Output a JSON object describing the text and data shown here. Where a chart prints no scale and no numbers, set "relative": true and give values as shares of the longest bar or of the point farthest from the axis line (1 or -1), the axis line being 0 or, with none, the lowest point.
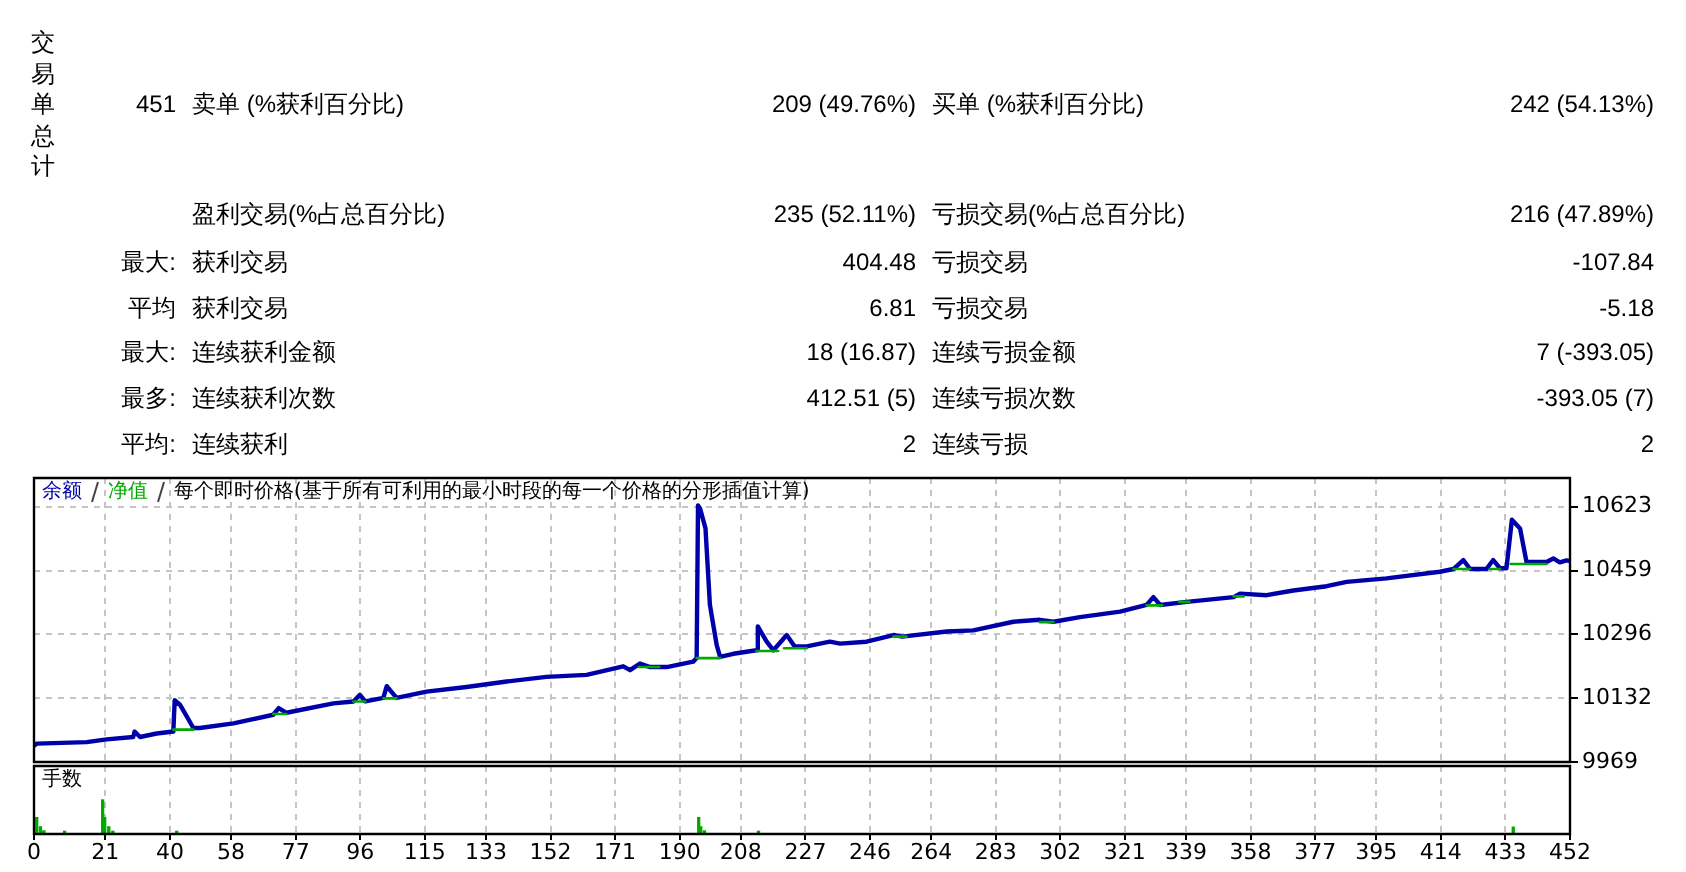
{
  "chart_data": [
    {
      "type": "other",
      "title": "交易单总计",
      "annotations": [
        "451",
        "卖单 (%获利百分比)",
        "209 (49.76%)",
        "买单 (%获利百分比)",
        "242 (54.13%)",
        "盈利交易(%占总百分比)",
        "235 (52.11%)",
        "亏损交易(%占总百分比)",
        "216 (47.89%)",
        "最大:",
        "获利交易",
        "404.48",
        "亏损交易",
        "-107.84",
        "平均",
        "获利交易",
        "6.81",
        "亏损交易",
        "-5.18",
        "最大:",
        "连续获利金额",
        "18 (16.87)",
        "连续亏损金额",
        "7 (-393.05)",
        "最多:",
        "连续获利次数",
        "412.51 (5)",
        "连续亏损次数",
        "-393.05 (7)",
        "平均:",
        "连续获利",
        "2",
        "连续亏损",
        "2"
      ]
    },
    {
      "type": "line",
      "legend": "top left",
      "annotations": [
        "每个即时价格(基于所有可利用的最小时段的每一个价格的分形插值计算)"
      ],
      "xlim": [
        0,
        452
      ],
      "xticks": [
        0,
        21,
        40,
        58,
        77,
        96,
        115,
        133,
        152,
        171,
        190,
        208,
        227,
        246,
        264,
        283,
        302,
        321,
        339,
        358,
        377,
        395,
        414,
        433,
        452
      ],
      "ylim": [
        9969,
        10696
      ],
      "yticks": [
        9969,
        10132,
        10296,
        10459,
        10623
      ],
      "grid": true,
      "tick_labels": "y",
      "series": [
        {
          "name": "余额",
          "color": "#0000aa",
          "x": [
            0,
            0.8,
            15.5,
            21.4,
            29.2,
            29.6,
            31.2,
            36.1,
            41.0,
            41.4,
            43.0,
            46.9,
            48.8,
            58.7,
            70.4,
            72.0,
            74.3,
            88.1,
            94.0,
            95.9,
            97.5,
            102.8,
            103.8,
            106.7,
            115.5,
            127.3,
            139.1,
            150.8,
            162.6,
            173.4,
            175.4,
            178.3,
            181.3,
            186.2,
            194.0,
            195.0,
            195.4,
            196.0,
            197.6,
            198.9,
            200.9,
            201.9,
            205.8,
            212.6,
            213.0,
            215.6,
            217.6,
            221.5,
            223.8,
            227.4,
            234.2,
            237.2,
            245.0,
            252.9,
            255.5,
            268.6,
            276.4,
            288.2,
            296.0,
            300.0,
            307.8,
            319.6,
            327.4,
            329.4,
            331.4,
            339.2,
            353.0,
            354.9,
            362.7,
            370.6,
            380.4,
            386.3,
            398.0,
            413.7,
            417.7,
            420.6,
            422.6,
            427.4,
            429.4,
            431.4,
            433.3,
            434.9,
            437.3,
            439.2,
            445.1,
            447.1,
            449.0,
            451.0,
            452
          ],
          "values": [
            10011,
            10016,
            10020,
            10027,
            10033,
            10047,
            10033,
            10042,
            10047,
            10127,
            10115,
            10056,
            10056,
            10068,
            10090,
            10107,
            10095,
            10119,
            10124,
            10141,
            10124,
            10133,
            10163,
            10133,
            10149,
            10161,
            10175,
            10187,
            10192,
            10214,
            10204,
            10221,
            10212,
            10212,
            10226,
            10235,
            10626,
            10618,
            10567,
            10371,
            10268,
            10238,
            10246,
            10255,
            10316,
            10277,
            10255,
            10294,
            10265,
            10265,
            10277,
            10272,
            10277,
            10294,
            10290,
            10303,
            10306,
            10328,
            10333,
            10328,
            10340,
            10354,
            10371,
            10391,
            10371,
            10379,
            10391,
            10400,
            10396,
            10408,
            10419,
            10430,
            10439,
            10456,
            10463,
            10486,
            10463,
            10463,
            10486,
            10465,
            10465,
            10589,
            10567,
            10481,
            10481,
            10490,
            10480,
            10485,
            10483
          ]
        },
        {
          "name": "净值",
          "color": "#00a800",
          "x": [
            41.0,
            46.9,
            52,
            70.4,
            74.3,
            80,
            94.0,
            97.5,
            100,
            102.8,
            106.7,
            110,
            178.0,
            184.0,
            190,
            195.0,
            201.9,
            207,
            212.6,
            219.0,
            220,
            220.7,
            227.4,
            240,
            252.9,
            256.8,
            260,
            296.0,
            300.0,
            310,
            327.4,
            332.0,
            335,
            337.0,
            340.0,
            345,
            353.0,
            356.0,
            360,
            417.7,
            422.6,
            425,
            428.4,
            431.4,
            433,
            434.5,
            445.1
          ],
          "values": [
            10052,
            10052,
            null,
            10092,
            10092,
            null,
            10124,
            10124,
            null,
            10132,
            10132,
            null,
            10212,
            10212,
            null,
            10235,
            10235,
            null,
            10253,
            10253,
            null,
            10260,
            10260,
            null,
            10290,
            10290,
            null,
            10327,
            10327,
            null,
            10370,
            10370,
            null,
            10379,
            10379,
            null,
            10393,
            10393,
            null,
            10463,
            10463,
            null,
            10463,
            10463,
            null,
            10476,
            10476
          ]
        }
      ]
    },
    {
      "type": "bar",
      "title": "手数",
      "relative": true,
      "color": "#00a800",
      "x": [
        0.8,
        1.9,
        2.9,
        9.0,
        20.2,
        20.8,
        22.0,
        23.2,
        42.0,
        195.6,
        196.2,
        197.3,
        213.2,
        435.3
      ],
      "values": [
        0.48,
        0.21,
        0.09,
        0.08,
        1,
        0.48,
        0.21,
        0.08,
        0.08,
        0.48,
        0.21,
        0.09,
        0.08,
        0.2
      ],
      "xlim": [
        0,
        452
      ],
      "xticks": [
        0,
        21,
        40,
        58,
        77,
        96,
        115,
        133,
        152,
        171,
        190,
        208,
        227,
        246,
        264,
        283,
        302,
        321,
        339,
        358,
        377,
        395,
        414,
        433,
        452
      ],
      "grid": "x",
      "tick_labels": "x"
    }
  ]
}
